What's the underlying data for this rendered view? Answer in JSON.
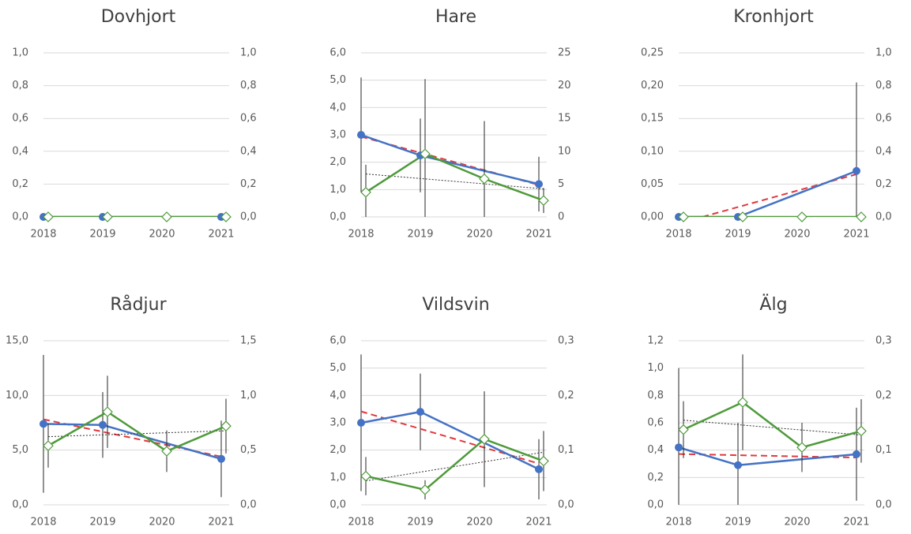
{
  "chart_data": [
    {
      "type": "line",
      "title": "Dovhjort",
      "categories": [
        "2018",
        "2019",
        "2020",
        "2021"
      ],
      "ylim": [
        0,
        1
      ],
      "yticks": [
        {
          "value": 0,
          "label": "0,0"
        },
        {
          "value": 0.2,
          "label": "0,2"
        },
        {
          "value": 0.4,
          "label": "0,4"
        },
        {
          "value": 0.6,
          "label": "0,6"
        },
        {
          "value": 0.8,
          "label": "0,8"
        },
        {
          "value": 1,
          "label": "1,0"
        }
      ],
      "y2lim": [
        0,
        1
      ],
      "y2ticks": [
        {
          "value": 0,
          "label": "0,0"
        },
        {
          "value": 0.2,
          "label": "0,2"
        },
        {
          "value": 0.4,
          "label": "0,4"
        },
        {
          "value": 0.6,
          "label": "0,6"
        },
        {
          "value": 0.8,
          "label": "0,8"
        },
        {
          "value": 1,
          "label": "1,0"
        }
      ],
      "grid": true,
      "series": [
        {
          "color": "#4472c4",
          "marker": "circle",
          "values": [
            0,
            0,
            null,
            0
          ]
        },
        {
          "color": "#4e9a3a",
          "marker": "diamond",
          "axis": "y2",
          "values": [
            0,
            0,
            0,
            0
          ]
        }
      ]
    },
    {
      "type": "line",
      "title": "Hare",
      "categories": [
        "2018",
        "2019",
        "2020",
        "2021"
      ],
      "ylim": [
        0,
        6
      ],
      "yticks": [
        {
          "value": 0,
          "label": "0,0"
        },
        {
          "value": 1,
          "label": "1,0"
        },
        {
          "value": 2,
          "label": "2,0"
        },
        {
          "value": 3,
          "label": "3,0"
        },
        {
          "value": 4,
          "label": "4,0"
        },
        {
          "value": 5,
          "label": "5,0"
        },
        {
          "value": 6,
          "label": "6,0"
        }
      ],
      "y2lim": [
        0,
        25
      ],
      "y2ticks": [
        0,
        5,
        10,
        15,
        20,
        25
      ],
      "grid": true,
      "series": [
        {
          "color": "#4472c4",
          "marker": "circle",
          "values": [
            3.0,
            2.25,
            null,
            1.2
          ],
          "errors": [
            2.1,
            1.35,
            null,
            1.0
          ],
          "trendline_color": "#e0393e"
        },
        {
          "color": "#4e9a3a",
          "marker": "diamond",
          "axis": "y2",
          "values": [
            3.75,
            9.6,
            5.8,
            2.5
          ],
          "errors": [
            4.2,
            11.4,
            8.8,
            1.9
          ],
          "trendline_color": "#333333"
        }
      ]
    },
    {
      "type": "line",
      "title": "Kronhjort",
      "categories": [
        "2018",
        "2019",
        "2020",
        "2021"
      ],
      "ylim": [
        0,
        0.25
      ],
      "yticks": [
        {
          "value": 0,
          "label": "0,00"
        },
        {
          "value": 0.05,
          "label": "0,05"
        },
        {
          "value": 0.1,
          "label": "0,10"
        },
        {
          "value": 0.15,
          "label": "0,15"
        },
        {
          "value": 0.2,
          "label": "0,20"
        },
        {
          "value": 0.25,
          "label": "0,25"
        }
      ],
      "y2lim": [
        0,
        1
      ],
      "y2ticks": [
        {
          "value": 0,
          "label": "0,0"
        },
        {
          "value": 0.2,
          "label": "0,2"
        },
        {
          "value": 0.4,
          "label": "0,4"
        },
        {
          "value": 0.6,
          "label": "0,6"
        },
        {
          "value": 0.8,
          "label": "0,8"
        },
        {
          "value": 1,
          "label": "1,0"
        }
      ],
      "grid": true,
      "series": [
        {
          "color": "#4472c4",
          "marker": "circle",
          "values": [
            0,
            0,
            null,
            0.07
          ],
          "errors": [
            null,
            null,
            null,
            0.135
          ],
          "trendline_color": "#e0393e"
        },
        {
          "color": "#4e9a3a",
          "marker": "diamond",
          "axis": "y2",
          "values": [
            0,
            0,
            0,
            0
          ]
        }
      ]
    },
    {
      "type": "line",
      "title": "Rådjur",
      "categories": [
        "2018",
        "2019",
        "2020",
        "2021"
      ],
      "ylim": [
        0,
        15
      ],
      "yticks": [
        {
          "value": 0,
          "label": "0,0"
        },
        {
          "value": 5,
          "label": "5,0"
        },
        {
          "value": 10,
          "label": "10,0"
        },
        {
          "value": 15,
          "label": "15,0"
        }
      ],
      "y2lim": [
        0,
        1.5
      ],
      "y2ticks": [
        {
          "value": 0,
          "label": "0,0"
        },
        {
          "value": 0.5,
          "label": "0,5"
        },
        {
          "value": 1,
          "label": "1,0"
        },
        {
          "value": 1.5,
          "label": "1,5"
        }
      ],
      "grid": true,
      "series": [
        {
          "color": "#4472c4",
          "marker": "circle",
          "values": [
            7.4,
            7.3,
            null,
            4.2
          ],
          "errors": [
            6.3,
            3.0,
            null,
            3.5
          ],
          "trendline_color": "#e0393e"
        },
        {
          "color": "#4e9a3a",
          "marker": "diamond",
          "axis": "y2",
          "values": [
            0.54,
            0.85,
            0.49,
            0.72
          ],
          "errors": [
            0.2,
            0.33,
            0.19,
            0.25
          ],
          "trendline_color": "#333333"
        }
      ]
    },
    {
      "type": "line",
      "title": "Vildsvin",
      "categories": [
        "2018",
        "2019",
        "2020",
        "2021"
      ],
      "ylim": [
        0,
        6
      ],
      "yticks": [
        {
          "value": 0,
          "label": "0,0"
        },
        {
          "value": 1,
          "label": "1,0"
        },
        {
          "value": 2,
          "label": "2,0"
        },
        {
          "value": 3,
          "label": "3,0"
        },
        {
          "value": 4,
          "label": "4,0"
        },
        {
          "value": 5,
          "label": "5,0"
        },
        {
          "value": 6,
          "label": "6,0"
        }
      ],
      "y2lim": [
        0,
        0.3
      ],
      "y2ticks": [
        {
          "value": 0,
          "label": "0,0"
        },
        {
          "value": 0.1,
          "label": "0,1"
        },
        {
          "value": 0.2,
          "label": "0,2"
        },
        {
          "value": 0.3,
          "label": "0,3"
        }
      ],
      "grid": true,
      "series": [
        {
          "color": "#4472c4",
          "marker": "circle",
          "values": [
            3.0,
            3.4,
            null,
            1.3
          ],
          "errors": [
            2.5,
            1.4,
            null,
            1.1
          ],
          "trendline_color": "#e0393e"
        },
        {
          "color": "#4e9a3a",
          "marker": "diamond",
          "axis": "y2",
          "values": [
            0.0525,
            0.0275,
            0.12,
            0.08
          ],
          "errors": [
            0.035,
            0.0175,
            0.0875,
            0.055
          ],
          "trendline_color": "#333333"
        }
      ]
    },
    {
      "type": "line",
      "title": "Älg",
      "categories": [
        "2018",
        "2019",
        "2020",
        "2021"
      ],
      "ylim": [
        0,
        1.2
      ],
      "yticks": [
        {
          "value": 0,
          "label": "0,0"
        },
        {
          "value": 0.2,
          "label": "0,2"
        },
        {
          "value": 0.4,
          "label": "0,4"
        },
        {
          "value": 0.6,
          "label": "0,6"
        },
        {
          "value": 0.8,
          "label": "0,8"
        },
        {
          "value": 1,
          "label": "1,0"
        },
        {
          "value": 1.2,
          "label": "1,2"
        }
      ],
      "y2lim": [
        0,
        0.3
      ],
      "y2ticks": [
        {
          "value": 0,
          "label": "0,0"
        },
        {
          "value": 0.1,
          "label": "0,1"
        },
        {
          "value": 0.2,
          "label": "0,2"
        },
        {
          "value": 0.3,
          "label": "0,3"
        }
      ],
      "grid": true,
      "series": [
        {
          "color": "#4472c4",
          "marker": "circle",
          "values": [
            0.42,
            0.29,
            null,
            0.37
          ],
          "errors": [
            0.58,
            0.31,
            null,
            0.34
          ],
          "trendline_color": "#e0393e"
        },
        {
          "color": "#4e9a3a",
          "marker": "diamond",
          "axis": "y2",
          "values": [
            0.1375,
            0.1875,
            0.105,
            0.135
          ],
          "errors": [
            0.052,
            0.0875,
            0.045,
            0.058
          ],
          "trendline_color": "#333333"
        }
      ]
    }
  ]
}
